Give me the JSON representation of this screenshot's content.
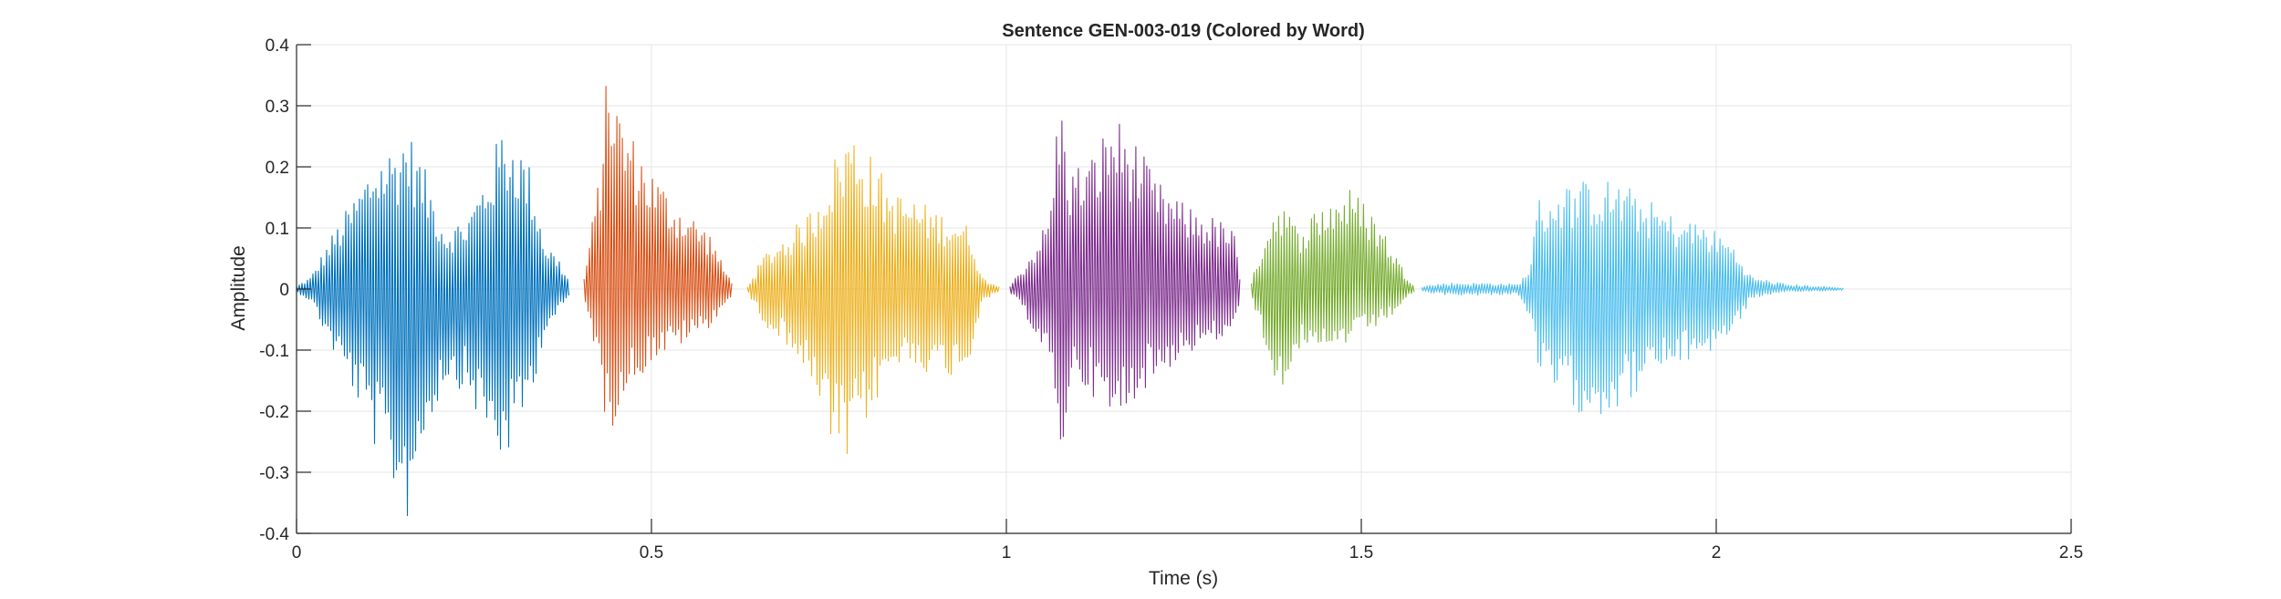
{
  "chart_data": {
    "type": "line",
    "title": "Sentence GEN-003-019 (Colored by Word)",
    "xlabel": "Time (s)",
    "ylabel": "Amplitude",
    "xlim": [
      0,
      2.5
    ],
    "ylim": [
      -0.4,
      0.4
    ],
    "xticks": [
      0,
      0.5,
      1,
      1.5,
      2,
      2.5
    ],
    "xtick_labels": [
      "0",
      "0.5",
      "1",
      "1.5",
      "2",
      "2.5"
    ],
    "yticks": [
      -0.4,
      -0.3,
      -0.2,
      -0.1,
      0,
      0.1,
      0.2,
      0.3,
      0.4
    ],
    "ytick_labels": [
      "-0.4",
      "-0.3",
      "-0.2",
      "-0.1",
      "0",
      "0.1",
      "0.2",
      "0.3",
      "0.4"
    ],
    "grid": true,
    "series": [
      {
        "color": "#0072BD",
        "start": 0.0,
        "end": 0.385,
        "envelope": [
          [
            0.0,
            0.005
          ],
          [
            0.02,
            0.02
          ],
          [
            0.05,
            0.09
          ],
          [
            0.08,
            0.15
          ],
          [
            0.11,
            0.22
          ],
          [
            0.14,
            0.24
          ],
          [
            0.155,
            0.27
          ],
          [
            0.18,
            0.2
          ],
          [
            0.21,
            0.1
          ],
          [
            0.24,
            0.12
          ],
          [
            0.27,
            0.2
          ],
          [
            0.29,
            0.27
          ],
          [
            0.31,
            0.25
          ],
          [
            0.33,
            0.2
          ],
          [
            0.35,
            0.08
          ],
          [
            0.37,
            0.05
          ],
          [
            0.385,
            0.01
          ]
        ],
        "envelope_min": [
          [
            0.0,
            -0.005
          ],
          [
            0.02,
            -0.02
          ],
          [
            0.05,
            -0.1
          ],
          [
            0.08,
            -0.17
          ],
          [
            0.11,
            -0.26
          ],
          [
            0.14,
            -0.34
          ],
          [
            0.155,
            -0.385
          ],
          [
            0.18,
            -0.25
          ],
          [
            0.21,
            -0.15
          ],
          [
            0.24,
            -0.17
          ],
          [
            0.27,
            -0.25
          ],
          [
            0.29,
            -0.29
          ],
          [
            0.31,
            -0.25
          ],
          [
            0.33,
            -0.18
          ],
          [
            0.35,
            -0.07
          ],
          [
            0.37,
            -0.04
          ],
          [
            0.385,
            -0.01
          ]
        ]
      },
      {
        "color": "#D95319",
        "start": 0.405,
        "end": 0.615,
        "envelope": [
          [
            0.405,
            0.02
          ],
          [
            0.425,
            0.18
          ],
          [
            0.44,
            0.395
          ],
          [
            0.455,
            0.3
          ],
          [
            0.475,
            0.25
          ],
          [
            0.5,
            0.2
          ],
          [
            0.53,
            0.15
          ],
          [
            0.56,
            0.12
          ],
          [
            0.585,
            0.09
          ],
          [
            0.6,
            0.04
          ],
          [
            0.615,
            0.01
          ]
        ],
        "envelope_min": [
          [
            0.405,
            -0.02
          ],
          [
            0.425,
            -0.12
          ],
          [
            0.44,
            -0.265
          ],
          [
            0.455,
            -0.18
          ],
          [
            0.475,
            -0.16
          ],
          [
            0.5,
            -0.12
          ],
          [
            0.53,
            -0.1
          ],
          [
            0.56,
            -0.08
          ],
          [
            0.585,
            -0.06
          ],
          [
            0.6,
            -0.03
          ],
          [
            0.615,
            -0.01
          ]
        ]
      },
      {
        "color": "#EDB120",
        "start": 0.635,
        "end": 0.99,
        "envelope": [
          [
            0.635,
            0.005
          ],
          [
            0.66,
            0.06
          ],
          [
            0.7,
            0.1
          ],
          [
            0.73,
            0.14
          ],
          [
            0.75,
            0.2
          ],
          [
            0.78,
            0.27
          ],
          [
            0.81,
            0.22
          ],
          [
            0.84,
            0.16
          ],
          [
            0.87,
            0.15
          ],
          [
            0.9,
            0.13
          ],
          [
            0.93,
            0.12
          ],
          [
            0.95,
            0.1
          ],
          [
            0.965,
            0.02
          ],
          [
            0.99,
            0.005
          ]
        ],
        "envelope_min": [
          [
            0.635,
            -0.005
          ],
          [
            0.66,
            -0.06
          ],
          [
            0.7,
            -0.1
          ],
          [
            0.73,
            -0.18
          ],
          [
            0.75,
            -0.25
          ],
          [
            0.775,
            -0.295
          ],
          [
            0.81,
            -0.2
          ],
          [
            0.84,
            -0.14
          ],
          [
            0.87,
            -0.12
          ],
          [
            0.9,
            -0.15
          ],
          [
            0.93,
            -0.14
          ],
          [
            0.95,
            -0.12
          ],
          [
            0.965,
            -0.02
          ],
          [
            0.99,
            -0.005
          ]
        ]
      },
      {
        "color": "#7E2F8E",
        "start": 1.005,
        "end": 1.33,
        "envelope": [
          [
            1.005,
            0.005
          ],
          [
            1.03,
            0.05
          ],
          [
            1.06,
            0.12
          ],
          [
            1.075,
            0.33
          ],
          [
            1.09,
            0.2
          ],
          [
            1.12,
            0.22
          ],
          [
            1.15,
            0.29
          ],
          [
            1.18,
            0.25
          ],
          [
            1.21,
            0.18
          ],
          [
            1.25,
            0.14
          ],
          [
            1.29,
            0.12
          ],
          [
            1.32,
            0.1
          ],
          [
            1.33,
            0.01
          ]
        ],
        "envelope_min": [
          [
            1.005,
            -0.005
          ],
          [
            1.03,
            -0.05
          ],
          [
            1.06,
            -0.12
          ],
          [
            1.075,
            -0.32
          ],
          [
            1.09,
            -0.15
          ],
          [
            1.12,
            -0.17
          ],
          [
            1.15,
            -0.24
          ],
          [
            1.18,
            -0.18
          ],
          [
            1.21,
            -0.15
          ],
          [
            1.25,
            -0.11
          ],
          [
            1.29,
            -0.09
          ],
          [
            1.32,
            -0.08
          ],
          [
            1.33,
            -0.01
          ]
        ]
      },
      {
        "color": "#77AC30",
        "start": 1.345,
        "end": 1.575,
        "envelope": [
          [
            1.345,
            0.01
          ],
          [
            1.365,
            0.1
          ],
          [
            1.385,
            0.16
          ],
          [
            1.41,
            0.1
          ],
          [
            1.44,
            0.14
          ],
          [
            1.48,
            0.17
          ],
          [
            1.51,
            0.14
          ],
          [
            1.54,
            0.08
          ],
          [
            1.56,
            0.03
          ],
          [
            1.575,
            0.005
          ]
        ],
        "envelope_min": [
          [
            1.345,
            -0.01
          ],
          [
            1.365,
            -0.1
          ],
          [
            1.385,
            -0.17
          ],
          [
            1.41,
            -0.1
          ],
          [
            1.44,
            -0.12
          ],
          [
            1.48,
            -0.09
          ],
          [
            1.51,
            -0.07
          ],
          [
            1.54,
            -0.05
          ],
          [
            1.56,
            -0.02
          ],
          [
            1.575,
            -0.005
          ]
        ]
      },
      {
        "color": "#4DBEEE",
        "start": 1.585,
        "end": 2.18,
        "envelope": [
          [
            1.585,
            0.005
          ],
          [
            1.62,
            0.01
          ],
          [
            1.68,
            0.01
          ],
          [
            1.72,
            0.008
          ],
          [
            1.735,
            0.03
          ],
          [
            1.75,
            0.15
          ],
          [
            1.78,
            0.17
          ],
          [
            1.82,
            0.18
          ],
          [
            1.86,
            0.18
          ],
          [
            1.9,
            0.15
          ],
          [
            1.94,
            0.12
          ],
          [
            1.98,
            0.11
          ],
          [
            2.02,
            0.08
          ],
          [
            2.05,
            0.02
          ],
          [
            2.1,
            0.008
          ],
          [
            2.18,
            0.002
          ]
        ],
        "envelope_min": [
          [
            1.585,
            -0.005
          ],
          [
            1.62,
            -0.01
          ],
          [
            1.68,
            -0.01
          ],
          [
            1.72,
            -0.008
          ],
          [
            1.735,
            -0.04
          ],
          [
            1.75,
            -0.15
          ],
          [
            1.8,
            -0.2
          ],
          [
            1.84,
            -0.21
          ],
          [
            1.88,
            -0.18
          ],
          [
            1.92,
            -0.14
          ],
          [
            1.96,
            -0.12
          ],
          [
            2.0,
            -0.1
          ],
          [
            2.03,
            -0.06
          ],
          [
            2.05,
            -0.015
          ],
          [
            2.1,
            -0.005
          ],
          [
            2.18,
            -0.002
          ]
        ]
      }
    ]
  }
}
